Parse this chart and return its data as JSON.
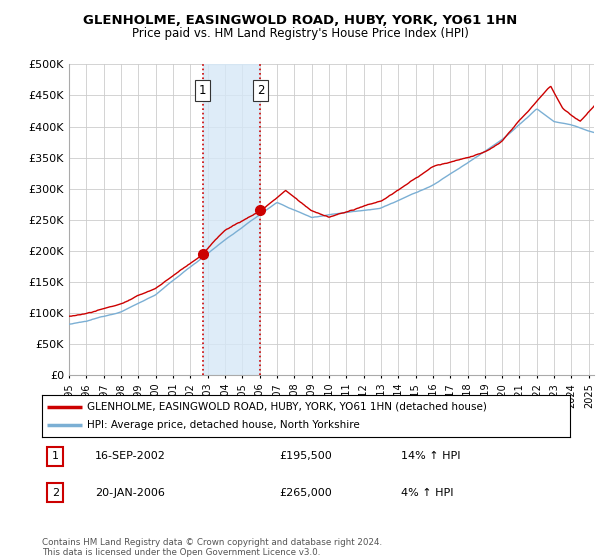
{
  "title": "GLENHOLME, EASINGWOLD ROAD, HUBY, YORK, YO61 1HN",
  "subtitle": "Price paid vs. HM Land Registry's House Price Index (HPI)",
  "ylabel_ticks": [
    "£0",
    "£50K",
    "£100K",
    "£150K",
    "£200K",
    "£250K",
    "£300K",
    "£350K",
    "£400K",
    "£450K",
    "£500K"
  ],
  "ytick_values": [
    0,
    50000,
    100000,
    150000,
    200000,
    250000,
    300000,
    350000,
    400000,
    450000,
    500000
  ],
  "ylim": [
    0,
    500000
  ],
  "xlim_start": 1995.0,
  "xlim_end": 2025.3,
  "sale1": {
    "date_x": 2002.71,
    "price": 195500,
    "label": "1",
    "date_str": "16-SEP-2002",
    "price_str": "£195,500",
    "hpi_pct": "14% ↑ HPI"
  },
  "sale2": {
    "date_x": 2006.05,
    "price": 265000,
    "label": "2",
    "date_str": "20-JAN-2006",
    "price_str": "£265,000",
    "hpi_pct": "4% ↑ HPI"
  },
  "legend_house": "GLENHOLME, EASINGWOLD ROAD, HUBY, YORK, YO61 1HN (detached house)",
  "legend_hpi": "HPI: Average price, detached house, North Yorkshire",
  "footnote": "Contains HM Land Registry data © Crown copyright and database right 2024.\nThis data is licensed under the Open Government Licence v3.0.",
  "house_color": "#cc0000",
  "hpi_color": "#7bafd4",
  "shade_color": "#d6e8f7",
  "vline_color": "#cc0000",
  "marker_color": "#cc0000",
  "background_color": "#ffffff",
  "grid_color": "#cccccc"
}
